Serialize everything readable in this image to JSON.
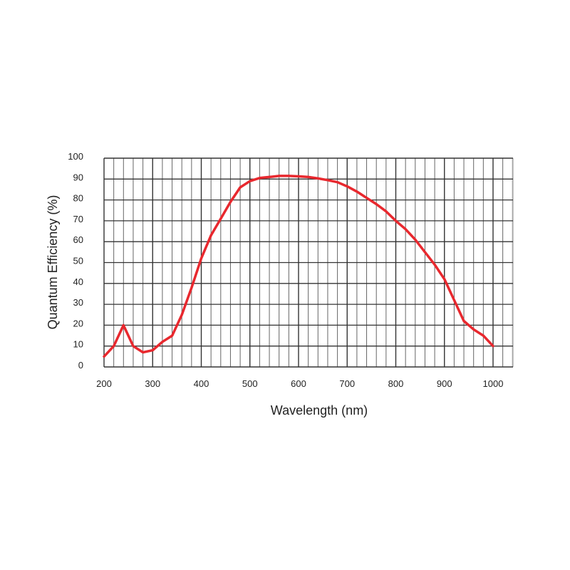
{
  "chart_data": {
    "type": "line",
    "title": "",
    "xlabel": "Wavelength (nm)",
    "ylabel": "Quantum Efficiency (%)",
    "xlim": [
      200,
      1040
    ],
    "ylim": [
      0,
      100
    ],
    "grid": true,
    "x_ticks": [
      "200",
      "300",
      "400",
      "500",
      "600",
      "700",
      "800",
      "900",
      "1000"
    ],
    "y_ticks": [
      "0",
      "10",
      "20",
      "30",
      "40",
      "50",
      "60",
      "70",
      "80",
      "90",
      "100"
    ],
    "line_color": "#e8282e",
    "series": [
      {
        "name": "Quantum Efficiency",
        "x": [
          200,
          220,
          240,
          260,
          280,
          300,
          320,
          340,
          360,
          380,
          400,
          420,
          440,
          460,
          480,
          500,
          520,
          540,
          560,
          580,
          600,
          620,
          640,
          660,
          680,
          700,
          720,
          740,
          760,
          780,
          800,
          820,
          840,
          860,
          880,
          900,
          920,
          940,
          960,
          980,
          1000
        ],
        "y": [
          5,
          10,
          20,
          10,
          7,
          8,
          12,
          15,
          25,
          38,
          52,
          63,
          71,
          79,
          86,
          89,
          90.5,
          91,
          91.5,
          91.5,
          91.3,
          91,
          90.3,
          89.5,
          88.5,
          86.5,
          84,
          81,
          78,
          74.5,
          70,
          66,
          61,
          55,
          49,
          42,
          32,
          22,
          18,
          15,
          10
        ]
      }
    ]
  }
}
